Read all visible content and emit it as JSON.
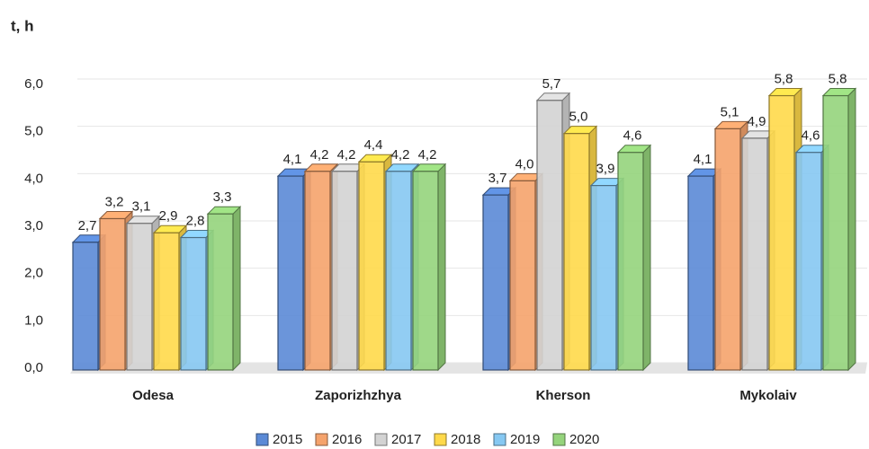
{
  "chart_data": {
    "type": "bar3d",
    "y_label": "t, h",
    "categories": [
      "Odesa",
      "Zaporizhzhya",
      "Kherson",
      "Mykolaiv"
    ],
    "series": [
      {
        "name": "2015",
        "color": "#5b8ad6",
        "values": [
          2.7,
          4.1,
          3.7,
          4.1
        ],
        "value_labels": [
          "2,7",
          "4,1",
          "3,7",
          "4,1"
        ]
      },
      {
        "name": "2016",
        "color": "#f5a36c",
        "values": [
          3.2,
          4.2,
          4.0,
          5.1
        ],
        "value_labels": [
          "3,2",
          "4,2",
          "4,0",
          "5,1"
        ]
      },
      {
        "name": "2017",
        "color": "#d3d3d3",
        "values": [
          3.1,
          4.2,
          5.7,
          4.9
        ],
        "value_labels": [
          "3,1",
          "4,2",
          "5,7",
          "4,9"
        ]
      },
      {
        "name": "2018",
        "color": "#ffd94a",
        "values": [
          2.9,
          4.4,
          5.0,
          5.8
        ],
        "value_labels": [
          "2,9",
          "4,4",
          "5,0",
          "5,8"
        ]
      },
      {
        "name": "2019",
        "color": "#86c8f2",
        "values": [
          2.8,
          4.2,
          3.9,
          4.6
        ],
        "value_labels": [
          "2,8",
          "4,2",
          "3,9",
          "4,6"
        ]
      },
      {
        "name": "2020",
        "color": "#95d47c",
        "values": [
          3.3,
          4.2,
          4.6,
          5.8
        ],
        "value_labels": [
          "3,3",
          "4,2",
          "4,6",
          "5,8"
        ]
      }
    ],
    "ylim": [
      0,
      6
    ],
    "yticks": [
      {
        "value": 0,
        "label": "0,0"
      },
      {
        "value": 1,
        "label": "1,0"
      },
      {
        "value": 2,
        "label": "2,0"
      },
      {
        "value": 3,
        "label": "3,0"
      },
      {
        "value": 4,
        "label": "4,0"
      },
      {
        "value": 5,
        "label": "5,0"
      },
      {
        "value": 6,
        "label": "6,0"
      }
    ],
    "grid": true,
    "legend": "bottom"
  }
}
